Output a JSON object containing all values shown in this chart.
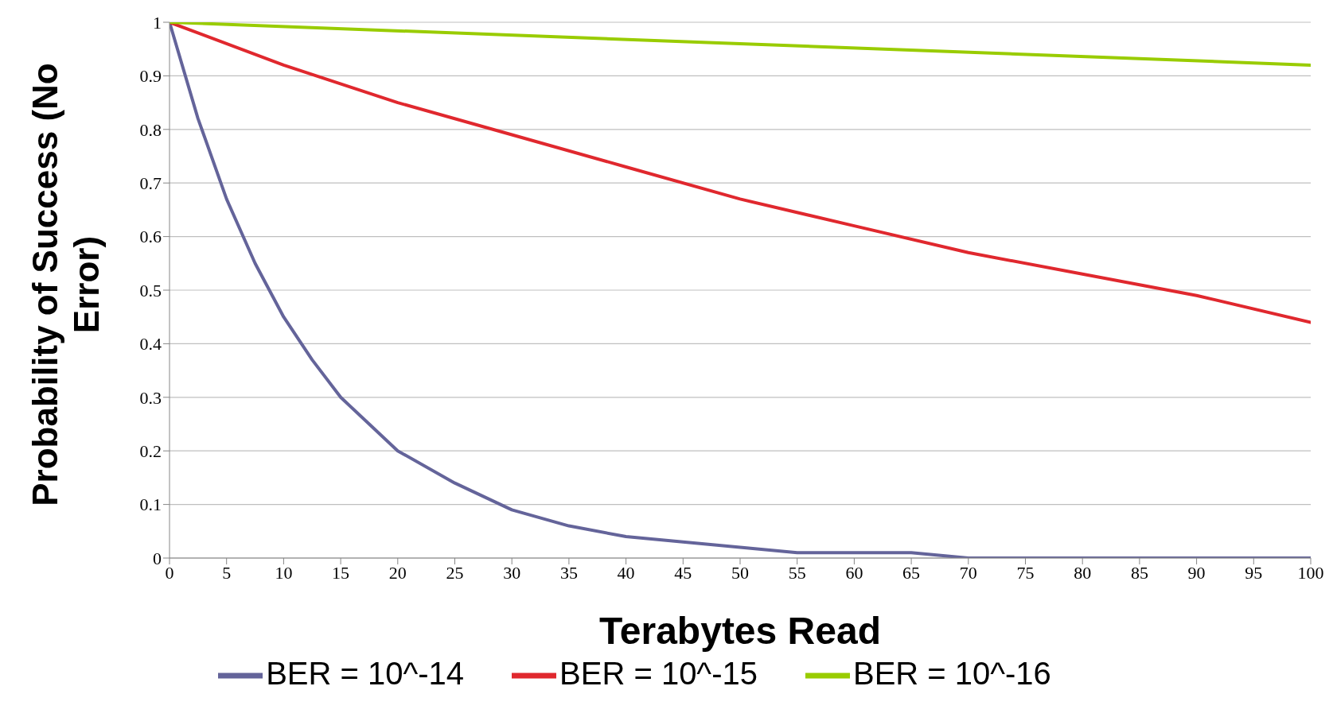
{
  "chart_data": {
    "type": "line",
    "xlabel": "Terabytes Read",
    "ylabel": "Probability of Success (No Error)",
    "xlim": [
      0,
      100
    ],
    "xticks": [
      0,
      5,
      10,
      15,
      20,
      25,
      30,
      35,
      40,
      45,
      50,
      55,
      60,
      65,
      70,
      75,
      80,
      85,
      90,
      95,
      100
    ],
    "ylim": [
      0,
      1
    ],
    "yticks": [
      0,
      0.1,
      0.2,
      0.3,
      0.4,
      0.5,
      0.6,
      0.7,
      0.8,
      0.9,
      1
    ],
    "grid": "y",
    "legend": "bottom",
    "marker": "none",
    "line_style": "solid",
    "series": [
      {
        "name": "BER = 10^-14",
        "color": "#64649a",
        "x": [
          0,
          2.5,
          5,
          7.5,
          10,
          12.5,
          15,
          17.5,
          20,
          25,
          30,
          35,
          40,
          45,
          50,
          55,
          60,
          65,
          70,
          75,
          80,
          85,
          90,
          95,
          100
        ],
        "values": [
          1,
          0.82,
          0.67,
          0.55,
          0.45,
          0.37,
          0.3,
          0.25,
          0.2,
          0.14,
          0.09,
          0.06,
          0.04,
          0.03,
          0.02,
          0.01,
          0.01,
          0.01,
          0,
          0,
          0,
          0,
          0,
          0,
          0
        ]
      },
      {
        "name": "BER = 10^-15",
        "color": "#e0282e",
        "x": [
          0,
          10,
          20,
          30,
          40,
          50,
          60,
          70,
          80,
          90,
          100
        ],
        "values": [
          1,
          0.92,
          0.85,
          0.79,
          0.73,
          0.67,
          0.62,
          0.57,
          0.53,
          0.49,
          0.44
        ]
      },
      {
        "name": "BER = 10^-16",
        "color": "#99cc00",
        "x": [
          0,
          50,
          100
        ],
        "values": [
          1,
          0.96,
          0.92
        ]
      }
    ]
  }
}
